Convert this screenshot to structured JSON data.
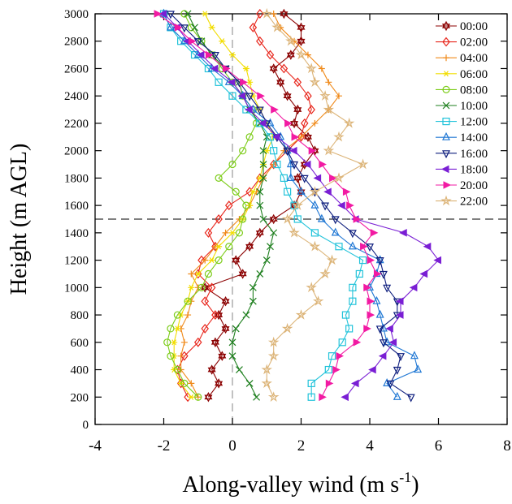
{
  "chart_data": {
    "type": "line",
    "title": "",
    "xlabel": "Along-valley wind (m s",
    "xlabel_sup": "-1",
    "xlabel_close": ")",
    "ylabel": "Height (m AGL)",
    "xlim": [
      -4,
      8
    ],
    "ylim": [
      0,
      3000
    ],
    "xticks": [
      -4,
      -2,
      0,
      2,
      4,
      6,
      8
    ],
    "xtick_labels": [
      "-4",
      "-2",
      "0",
      "2",
      "4",
      "6",
      "8"
    ],
    "yticks": [
      0,
      200,
      400,
      600,
      800,
      1000,
      1200,
      1400,
      1600,
      1800,
      2000,
      2200,
      2400,
      2600,
      2800,
      3000
    ],
    "ytick_labels": [
      "0",
      "200",
      "400",
      "600",
      "800",
      "1000",
      "1200",
      "1400",
      "1600",
      "1800",
      "2000",
      "2200",
      "2400",
      "2600",
      "2800",
      "3000"
    ],
    "grid": false,
    "legend_position": "top-right",
    "reference_lines": {
      "vertical_dashed_x": 0,
      "horizontal_dashed_y": 1500
    },
    "heights": [
      200,
      300,
      400,
      500,
      600,
      700,
      800,
      900,
      1000,
      1100,
      1200,
      1300,
      1400,
      1500,
      1600,
      1700,
      1800,
      1900,
      2000,
      2100,
      2200,
      2300,
      2400,
      2500,
      2600,
      2700,
      2800,
      2900,
      3000
    ],
    "series": [
      {
        "name": "00:00",
        "color": "#8b0000",
        "marker": "star6",
        "values": [
          -0.7,
          -0.4,
          -0.6,
          -0.3,
          -0.5,
          -0.2,
          -0.4,
          -0.2,
          -0.8,
          0.3,
          0.1,
          0.5,
          0.8,
          1.2,
          1.8,
          2.0,
          1.9,
          2.1,
          2.4,
          2.2,
          1.8,
          1.9,
          1.6,
          1.4,
          1.2,
          1.7,
          2.0,
          2.0,
          1.5
        ]
      },
      {
        "name": "02:00",
        "color": "#e8261c",
        "marker": "diamond",
        "values": [
          -1.3,
          -1.5,
          -1.6,
          -1.4,
          -1.0,
          -0.8,
          -0.5,
          -0.8,
          -0.6,
          -1.0,
          -0.9,
          -0.5,
          -0.7,
          -0.4,
          -0.1,
          0.5,
          0.8,
          1.2,
          1.6,
          2.0,
          2.1,
          2.3,
          2.2,
          1.9,
          1.5,
          1.1,
          0.8,
          0.6,
          0.8
        ]
      },
      {
        "name": "04:00",
        "color": "#f08a1a",
        "marker": "plus",
        "values": [
          -1.0,
          -1.2,
          -1.5,
          -1.5,
          -1.4,
          -1.5,
          -1.3,
          -1.2,
          -1.0,
          -1.2,
          -0.8,
          -0.5,
          -0.2,
          0.2,
          0.5,
          0.7,
          0.9,
          1.2,
          1.5,
          2.0,
          2.4,
          2.8,
          3.1,
          2.8,
          2.6,
          2.2,
          1.8,
          1.4,
          1.2
        ]
      },
      {
        "name": "06:00",
        "color": "#f2dd00",
        "marker": "asterisk",
        "values": [
          -1.2,
          -1.5,
          -1.7,
          -1.7,
          -1.7,
          -1.6,
          -1.5,
          -1.3,
          -1.2,
          -1.0,
          -0.6,
          -0.4,
          0.0,
          0.3,
          0.5,
          0.6,
          0.8,
          0.9,
          1.0,
          1.2,
          1.0,
          0.8,
          0.6,
          0.5,
          0.4,
          0.0,
          -0.3,
          -0.6,
          -0.8
        ]
      },
      {
        "name": "08:00",
        "color": "#7ccc18",
        "marker": "circle",
        "values": [
          -1.0,
          -1.4,
          -1.6,
          -1.8,
          -1.9,
          -1.8,
          -1.6,
          -1.3,
          -0.9,
          -0.7,
          -0.4,
          -0.1,
          0.2,
          0.3,
          0.4,
          0.1,
          -0.4,
          0.0,
          0.3,
          0.5,
          0.7,
          0.6,
          0.3,
          0.0,
          -0.3,
          -0.6,
          -0.9,
          -1.2,
          -1.4
        ]
      },
      {
        "name": "10:00",
        "color": "#1e7f1e",
        "marker": "x",
        "values": [
          0.7,
          0.5,
          0.2,
          0.0,
          0.0,
          0.1,
          0.4,
          0.6,
          0.6,
          0.8,
          1.0,
          1.1,
          1.2,
          0.9,
          0.8,
          0.8,
          0.9,
          0.9,
          0.9,
          1.0,
          0.8,
          0.5,
          0.3,
          0.2,
          -0.2,
          -0.6,
          -0.9,
          -1.1,
          -1.3
        ]
      },
      {
        "name": "12:00",
        "color": "#22c3da",
        "marker": "square",
        "values": [
          2.3,
          2.3,
          2.8,
          2.9,
          3.2,
          3.4,
          3.3,
          3.5,
          3.5,
          3.7,
          3.8,
          3.1,
          2.4,
          1.9,
          1.8,
          1.6,
          1.5,
          1.3,
          1.2,
          1.1,
          0.8,
          0.4,
          0.0,
          -0.4,
          -0.7,
          -1.1,
          -1.5,
          -1.8,
          -2.0
        ]
      },
      {
        "name": "14:00",
        "color": "#1f77d4",
        "marker": "triangle",
        "values": [
          4.8,
          4.5,
          5.4,
          5.3,
          4.5,
          4.4,
          4.3,
          4.2,
          4.0,
          4.2,
          4.3,
          3.5,
          3.0,
          2.6,
          2.4,
          2.0,
          1.7,
          1.7,
          1.6,
          1.4,
          1.1,
          0.6,
          0.3,
          -0.1,
          -0.6,
          -1.0,
          -1.4,
          -1.8,
          -2.0
        ]
      },
      {
        "name": "16:00",
        "color": "#0e1e7e",
        "marker": "triangle-down",
        "values": [
          5.2,
          4.6,
          4.8,
          4.9,
          4.4,
          4.3,
          4.8,
          4.8,
          4.5,
          4.4,
          4.3,
          4.0,
          3.5,
          3.0,
          2.7,
          2.4,
          2.1,
          1.8,
          1.6,
          1.3,
          1.0,
          0.8,
          0.5,
          0.2,
          -0.2,
          -0.5,
          -1.0,
          -1.4,
          -1.8
        ]
      },
      {
        "name": "18:00",
        "color": "#7a1fd4",
        "marker": "triangle-left",
        "values": [
          3.3,
          3.6,
          4.1,
          4.4,
          4.7,
          4.6,
          4.9,
          4.9,
          5.3,
          5.6,
          6.0,
          5.7,
          5.0,
          3.6,
          3.2,
          2.8,
          2.5,
          2.2,
          1.8,
          1.3,
          0.9,
          0.5,
          0.3,
          0.0,
          -0.5,
          -0.9,
          -1.3,
          -1.6,
          -2.0
        ]
      },
      {
        "name": "20:00",
        "color": "#f21aa3",
        "marker": "triangle-right",
        "values": [
          2.6,
          2.8,
          3.0,
          3.1,
          3.6,
          3.9,
          4.0,
          4.0,
          3.9,
          4.2,
          4.0,
          3.8,
          4.1,
          3.6,
          3.4,
          3.3,
          2.9,
          2.6,
          2.3,
          1.8,
          1.6,
          1.2,
          0.8,
          0.3,
          -0.2,
          -0.7,
          -1.2,
          -1.6,
          -2.2
        ]
      },
      {
        "name": "22:00",
        "color": "#dcb478",
        "marker": "star5",
        "values": [
          1.2,
          1.0,
          1.0,
          1.2,
          1.2,
          1.6,
          2.0,
          2.5,
          2.3,
          2.7,
          2.9,
          2.4,
          1.8,
          1.6,
          1.9,
          2.4,
          3.1,
          3.8,
          2.8,
          3.1,
          3.4,
          2.8,
          2.7,
          2.4,
          2.3,
          2.0,
          1.7,
          1.3,
          1.0
        ]
      }
    ]
  }
}
